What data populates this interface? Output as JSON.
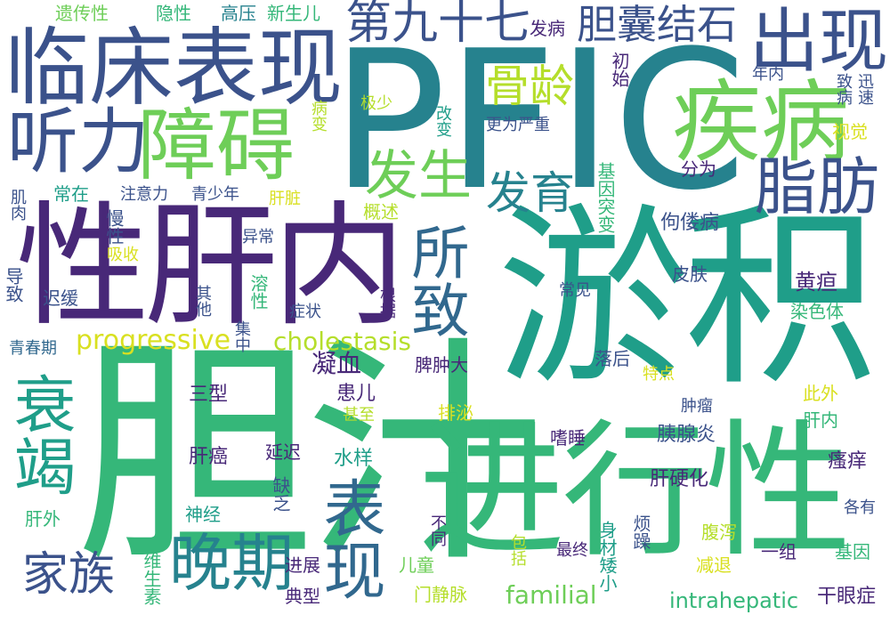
{
  "palette": {
    "background": "#ffffff",
    "dark_purple": "#482878",
    "indigo": "#3b528b",
    "blue": "#31688e",
    "teal_blue": "#26828e",
    "teal": "#1f9e89",
    "green": "#35b779",
    "light_green": "#6ece58",
    "yellow_green": "#b5de2b",
    "yellow": "#d9e021"
  },
  "words": [
    {
      "text": "PFIC"
    },
    {
      "text": "胆汁"
    },
    {
      "text": "淤积"
    },
    {
      "text": "性肝内"
    },
    {
      "text": "进行性"
    },
    {
      "text": "临床表现"
    },
    {
      "text": "疾病"
    },
    {
      "text": "障碍"
    },
    {
      "text": "听力"
    },
    {
      "text": "出现"
    },
    {
      "text": "衰竭"
    },
    {
      "text": "表现"
    },
    {
      "text": "晚期"
    },
    {
      "text": "所致"
    },
    {
      "text": "脂肪"
    },
    {
      "text": "胆囊结石"
    },
    {
      "text": "第九十七"
    },
    {
      "text": "发生"
    },
    {
      "text": "发育"
    },
    {
      "text": "家族"
    },
    {
      "text": "骨龄"
    },
    {
      "text": "progressive"
    },
    {
      "text": "cholestasis"
    },
    {
      "text": "familial"
    },
    {
      "text": "intrahepatic"
    },
    {
      "text": "遗传性"
    },
    {
      "text": "隐性"
    },
    {
      "text": "高压"
    },
    {
      "text": "新生儿"
    },
    {
      "text": "发病"
    },
    {
      "text": "初始"
    },
    {
      "text": "年内"
    },
    {
      "text": "致病"
    },
    {
      "text": "迅速"
    },
    {
      "text": "视觉"
    },
    {
      "text": "改变"
    },
    {
      "text": "更为严重"
    },
    {
      "text": "基因突变"
    },
    {
      "text": "分为"
    },
    {
      "text": "极少"
    },
    {
      "text": "病变"
    },
    {
      "text": "常在"
    },
    {
      "text": "肌肉"
    },
    {
      "text": "注意力"
    },
    {
      "text": "青少年"
    },
    {
      "text": "肝脏"
    },
    {
      "text": "慢性"
    },
    {
      "text": "概述"
    },
    {
      "text": "佝偻病"
    },
    {
      "text": "吸收"
    },
    {
      "text": "异常"
    },
    {
      "text": "导致"
    },
    {
      "text": "迟缓"
    },
    {
      "text": "其他"
    },
    {
      "text": "溶性"
    },
    {
      "text": "皮肤"
    },
    {
      "text": "黄疸"
    },
    {
      "text": "常见"
    },
    {
      "text": "根据"
    },
    {
      "text": "症状"
    },
    {
      "text": "染色体"
    },
    {
      "text": "青春期"
    },
    {
      "text": "集中"
    },
    {
      "text": "凝血"
    },
    {
      "text": "脾肿大"
    },
    {
      "text": "落后"
    },
    {
      "text": "特点"
    },
    {
      "text": "三型"
    },
    {
      "text": "患儿"
    },
    {
      "text": "此外"
    },
    {
      "text": "排泌"
    },
    {
      "text": "甚至"
    },
    {
      "text": "肿瘤"
    },
    {
      "text": "肝内"
    },
    {
      "text": "嗜睡"
    },
    {
      "text": "胰腺炎"
    },
    {
      "text": "肝癌"
    },
    {
      "text": "延迟"
    },
    {
      "text": "水样"
    },
    {
      "text": "瘙痒"
    },
    {
      "text": "肝硬化"
    },
    {
      "text": "神经"
    },
    {
      "text": "缺乏"
    },
    {
      "text": "肝外"
    },
    {
      "text": "各有"
    },
    {
      "text": "身材矮小"
    },
    {
      "text": "烦躁"
    },
    {
      "text": "腹泻"
    },
    {
      "text": "不同"
    },
    {
      "text": "包括"
    },
    {
      "text": "最终"
    },
    {
      "text": "一组"
    },
    {
      "text": "基因"
    },
    {
      "text": "维生素"
    },
    {
      "text": "进展"
    },
    {
      "text": "儿童"
    },
    {
      "text": "减退"
    },
    {
      "text": "典型"
    },
    {
      "text": "门静脉"
    },
    {
      "text": "干眼症"
    }
  ]
}
